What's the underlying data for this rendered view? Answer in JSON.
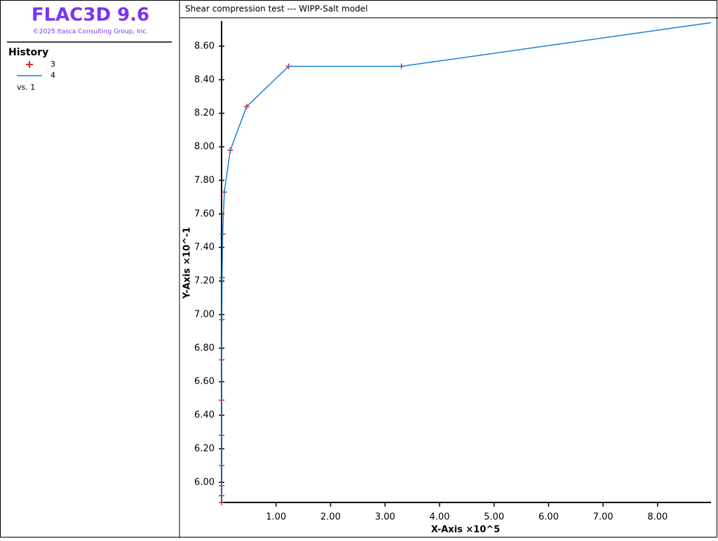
{
  "sidebar": {
    "app_title": "FLAC3D 9.6",
    "copyright": "©2025 Itasca Consulting Group, Inc.",
    "heading": "History",
    "vs_label": "vs. 1"
  },
  "chart_data": {
    "type": "line",
    "title": "Shear compression test --- WIPP-Salt model",
    "x_label": "X-Axis ×10^5",
    "y_label": "Y-Axis ×10^-1",
    "xlim": [
      0,
      8.98
    ],
    "ylim": [
      5.88,
      8.75
    ],
    "xticks": [
      {
        "value": 1,
        "label": "1.00"
      },
      {
        "value": 2,
        "label": "2.00"
      },
      {
        "value": 3,
        "label": "3.00"
      },
      {
        "value": 4,
        "label": "4.00"
      },
      {
        "value": 5,
        "label": "5.00"
      },
      {
        "value": 6,
        "label": "6.00"
      },
      {
        "value": 7,
        "label": "7.00"
      },
      {
        "value": 8,
        "label": "8.00"
      }
    ],
    "yticks": [
      {
        "value": 6,
        "label": "6.00"
      },
      {
        "value": 6.2,
        "label": "6.20"
      },
      {
        "value": 6.4,
        "label": "6.40"
      },
      {
        "value": 6.6,
        "label": "6.60"
      },
      {
        "value": 6.8,
        "label": "6.80"
      },
      {
        "value": 7,
        "label": "7.00"
      },
      {
        "value": 7.2,
        "label": "7.20"
      },
      {
        "value": 7.4,
        "label": "7.40"
      },
      {
        "value": 7.6,
        "label": "7.60"
      },
      {
        "value": 7.8,
        "label": "7.80"
      },
      {
        "value": 8,
        "label": "8.00"
      },
      {
        "value": 8.2,
        "label": "8.20"
      },
      {
        "value": 8.4,
        "label": "8.40"
      },
      {
        "value": 8.6,
        "label": "8.60"
      }
    ],
    "series": [
      {
        "name": "3",
        "color": "#e0202a",
        "style": "marker",
        "x": [
          0,
          0,
          0,
          0,
          0,
          0.001,
          0.002,
          0.005,
          0.01,
          0.02,
          0.05,
          0.16,
          0.46,
          1.23,
          3.3
        ],
        "values": [
          5.88,
          5.92,
          5.98,
          6.1,
          6.28,
          6.49,
          6.73,
          6.97,
          7.22,
          7.48,
          7.73,
          7.98,
          8.24,
          8.48,
          8.48
        ]
      },
      {
        "name": "4",
        "color": "#1a7fd6",
        "style": "line",
        "x": [
          0,
          0,
          0,
          0,
          0,
          0.001,
          0.002,
          0.005,
          0.01,
          0.02,
          0.05,
          0.16,
          0.46,
          1.23,
          3.3,
          8.98
        ],
        "values": [
          5.88,
          5.92,
          5.98,
          6.1,
          6.28,
          6.49,
          6.73,
          6.97,
          7.22,
          7.48,
          7.73,
          7.98,
          8.24,
          8.48,
          8.48,
          8.74
        ]
      }
    ]
  }
}
